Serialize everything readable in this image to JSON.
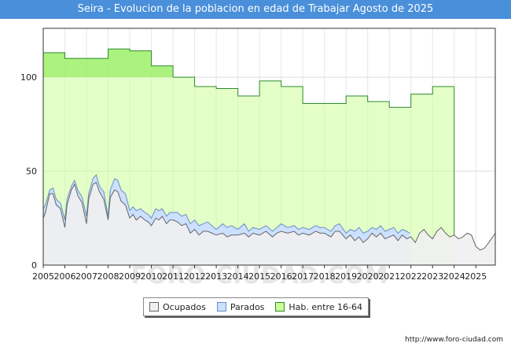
{
  "title": "Seira - Evolucion de la poblacion en edad de Trabajar Agosto de 2025",
  "url": "http://www.foro-ciudad.com",
  "watermark": "FORO-CIUDAD.COM",
  "colors": {
    "hab": "#ccff99",
    "hab_line": "#2e8b2e",
    "parados": "#cce0ff",
    "parados_line": "#6a8fc0",
    "ocupados": "#f0f0f0",
    "ocupados_line": "#666666",
    "title_bg": "#4a8fd9"
  },
  "chart_data": {
    "type": "area",
    "title": "Seira - Evolucion de la poblacion en edad de Trabajar Agosto de 2025",
    "xlim": [
      2005,
      2025.9
    ],
    "ylim": [
      0,
      126
    ],
    "yticks": [
      0,
      50,
      100
    ],
    "xticks": [
      "2005",
      "2006",
      "2007",
      "2008",
      "2009",
      "2010",
      "2011",
      "2012",
      "2013",
      "2014",
      "2015",
      "2016",
      "2017",
      "2018",
      "2019",
      "2020",
      "2021",
      "2022",
      "2023",
      "2024",
      "2025"
    ],
    "legend": [
      "Ocupados",
      "Parados",
      "Hab. entre 16-64"
    ],
    "series": [
      {
        "name": "Hab. entre 16-64",
        "kind": "step",
        "years": [
          2005,
          2006,
          2007,
          2008,
          2009,
          2010,
          2011,
          2012,
          2013,
          2014,
          2015,
          2016,
          2017,
          2018,
          2019,
          2020,
          2021,
          2022,
          2023
        ],
        "values": [
          113,
          110,
          110,
          115,
          114,
          106,
          100,
          95,
          94,
          90,
          98,
          95,
          86,
          86,
          90,
          87,
          84,
          91,
          95
        ],
        "end": 2024
      },
      {
        "name": "Parados+Ocupados",
        "x": [
          2005,
          2005.1,
          2005.3,
          2005.45,
          2005.6,
          2005.8,
          2006.0,
          2006.1,
          2006.3,
          2006.45,
          2006.6,
          2006.8,
          2007.0,
          2007.1,
          2007.3,
          2007.45,
          2007.6,
          2007.8,
          2008.0,
          2008.1,
          2008.3,
          2008.45,
          2008.6,
          2008.8,
          2009.0,
          2009.15,
          2009.3,
          2009.5,
          2009.7,
          2009.85,
          2010.0,
          2010.2,
          2010.35,
          2010.5,
          2010.7,
          2010.85,
          2011.0,
          2011.2,
          2011.4,
          2011.6,
          2011.8,
          2012.0,
          2012.2,
          2012.4,
          2012.6,
          2012.8,
          2013.0,
          2013.3,
          2013.5,
          2013.7,
          2014.0,
          2014.3,
          2014.5,
          2014.7,
          2015.0,
          2015.3,
          2015.6,
          2015.8,
          2016.0,
          2016.3,
          2016.6,
          2016.8,
          2017.0,
          2017.3,
          2017.6,
          2017.8,
          2018.0,
          2018.3,
          2018.5,
          2018.7,
          2019.0,
          2019.2,
          2019.4,
          2019.6,
          2019.8,
          2020.0,
          2020.2,
          2020.4,
          2020.6,
          2020.8,
          2021.0,
          2021.2,
          2021.4,
          2021.6,
          2021.8,
          2021.95
        ],
        "values": [
          30,
          32,
          40,
          41,
          35,
          33,
          24,
          35,
          42,
          45,
          40,
          36,
          26,
          38,
          46,
          48,
          42,
          39,
          26,
          40,
          46,
          45,
          40,
          38,
          29,
          31,
          29,
          30,
          28,
          27,
          25,
          30,
          29,
          30,
          26,
          28,
          28,
          28,
          26,
          27,
          22,
          24,
          21,
          22,
          23,
          21,
          19,
          22,
          20,
          21,
          19,
          22,
          18,
          20,
          19,
          21,
          18,
          20,
          22,
          20,
          21,
          19,
          20,
          19,
          21,
          20,
          20,
          18,
          21,
          22,
          17,
          19,
          18,
          20,
          17,
          18,
          20,
          19,
          21,
          18,
          19,
          20,
          17,
          19,
          18,
          17
        ]
      },
      {
        "name": "Ocupados",
        "x": [
          2005,
          2005.1,
          2005.3,
          2005.45,
          2005.6,
          2005.8,
          2006.0,
          2006.1,
          2006.3,
          2006.45,
          2006.6,
          2006.8,
          2007.0,
          2007.1,
          2007.3,
          2007.45,
          2007.6,
          2007.8,
          2008.0,
          2008.1,
          2008.3,
          2008.45,
          2008.6,
          2008.8,
          2009.0,
          2009.15,
          2009.3,
          2009.5,
          2009.7,
          2009.85,
          2010.0,
          2010.2,
          2010.35,
          2010.5,
          2010.7,
          2010.85,
          2011.0,
          2011.2,
          2011.4,
          2011.6,
          2011.8,
          2012.0,
          2012.2,
          2012.4,
          2012.6,
          2012.8,
          2013.0,
          2013.3,
          2013.5,
          2013.7,
          2014.0,
          2014.3,
          2014.5,
          2014.7,
          2015.0,
          2015.3,
          2015.6,
          2015.8,
          2016.0,
          2016.3,
          2016.6,
          2016.8,
          2017.0,
          2017.3,
          2017.6,
          2017.8,
          2018.0,
          2018.3,
          2018.5,
          2018.7,
          2019.0,
          2019.2,
          2019.4,
          2019.6,
          2019.8,
          2020.0,
          2020.2,
          2020.4,
          2020.6,
          2020.8,
          2021.0,
          2021.2,
          2021.4,
          2021.6,
          2021.8,
          2022.0,
          2022.2,
          2022.4,
          2022.6,
          2022.8,
          2023.0,
          2023.2,
          2023.4,
          2023.6,
          2023.8,
          2024.0,
          2024.2,
          2024.4,
          2024.6,
          2024.8,
          2025.0,
          2025.2,
          2025.4,
          2025.6,
          2025.9
        ],
        "values": [
          25,
          28,
          38,
          38,
          32,
          30,
          20,
          32,
          40,
          43,
          37,
          33,
          22,
          35,
          43,
          44,
          39,
          35,
          24,
          36,
          40,
          39,
          34,
          32,
          25,
          27,
          24,
          26,
          24,
          23,
          21,
          25,
          24,
          26,
          22,
          24,
          24,
          23,
          21,
          22,
          17,
          19,
          16,
          18,
          18,
          17,
          16,
          17,
          15,
          16,
          16,
          17,
          15,
          17,
          16,
          18,
          15,
          17,
          18,
          17,
          18,
          16,
          17,
          16,
          18,
          17,
          17,
          15,
          18,
          18,
          14,
          16,
          13,
          15,
          12,
          14,
          17,
          15,
          17,
          14,
          15,
          16,
          13,
          16,
          14,
          15,
          12,
          17,
          19,
          16,
          14,
          18,
          20,
          17,
          15,
          16,
          14,
          15,
          17,
          16,
          10,
          8,
          9,
          12,
          17
        ]
      }
    ]
  }
}
